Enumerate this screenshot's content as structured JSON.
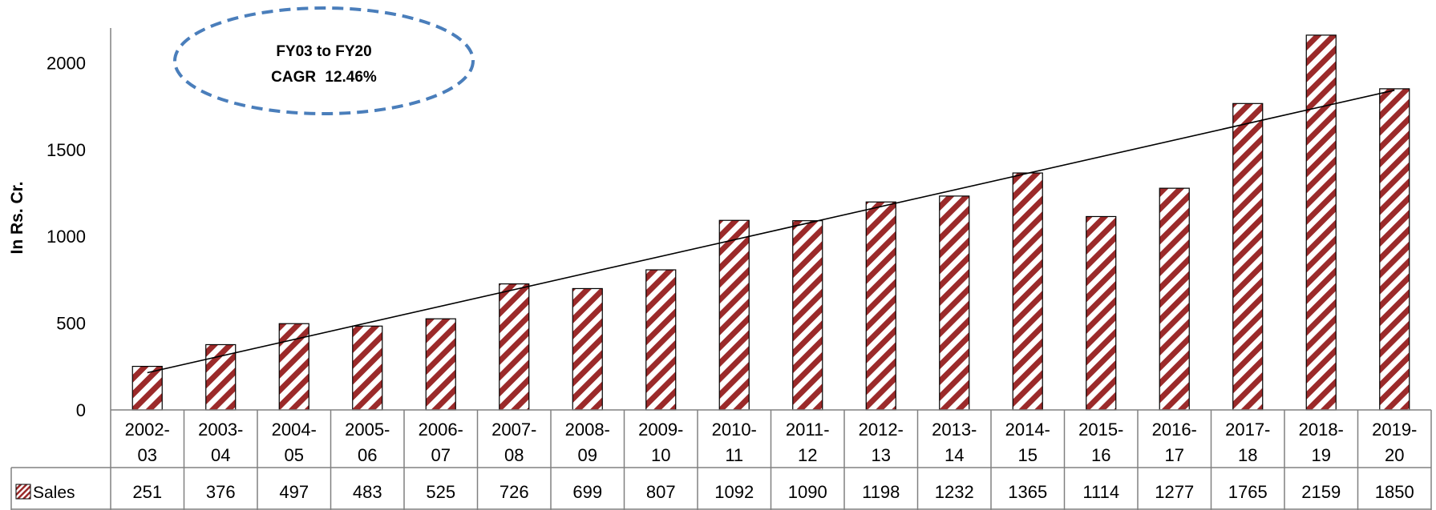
{
  "chart_data": {
    "type": "bar",
    "title": "",
    "ylabel": "In Rs. Cr.",
    "xlabel": "",
    "ylim": [
      0,
      2200
    ],
    "yticks": [
      0,
      500,
      1000,
      1500,
      2000
    ],
    "categories": [
      [
        "2002-",
        "03"
      ],
      [
        "2003-",
        "04"
      ],
      [
        "2004-",
        "05"
      ],
      [
        "2005-",
        "06"
      ],
      [
        "2006-",
        "07"
      ],
      [
        "2007-",
        "08"
      ],
      [
        "2008-",
        "09"
      ],
      [
        "2009-",
        "10"
      ],
      [
        "2010-",
        "11"
      ],
      [
        "2011-",
        "12"
      ],
      [
        "2012-",
        "13"
      ],
      [
        "2013-",
        "14"
      ],
      [
        "2014-",
        "15"
      ],
      [
        "2015-",
        "16"
      ],
      [
        "2016-",
        "17"
      ],
      [
        "2017-",
        "18"
      ],
      [
        "2018-",
        "19"
      ],
      [
        "2019-",
        "20"
      ]
    ],
    "series": [
      {
        "name": "Sales",
        "values": [
          251,
          376,
          497,
          483,
          525,
          726,
          699,
          807,
          1092,
          1090,
          1198,
          1232,
          1365,
          1114,
          1277,
          1765,
          2159,
          1850
        ],
        "color": "#9b2a2a",
        "pattern": "diagonal-stripes"
      }
    ],
    "trendline": {
      "type": "linear",
      "color": "#000000"
    },
    "data_table": true,
    "grid": false,
    "annotation": {
      "line1": "FY03 to FY20",
      "line2_bold": "CAGR",
      "line2_value": "12.46%",
      "border_color": "#4a7ebb",
      "border_style": "dashed"
    }
  }
}
